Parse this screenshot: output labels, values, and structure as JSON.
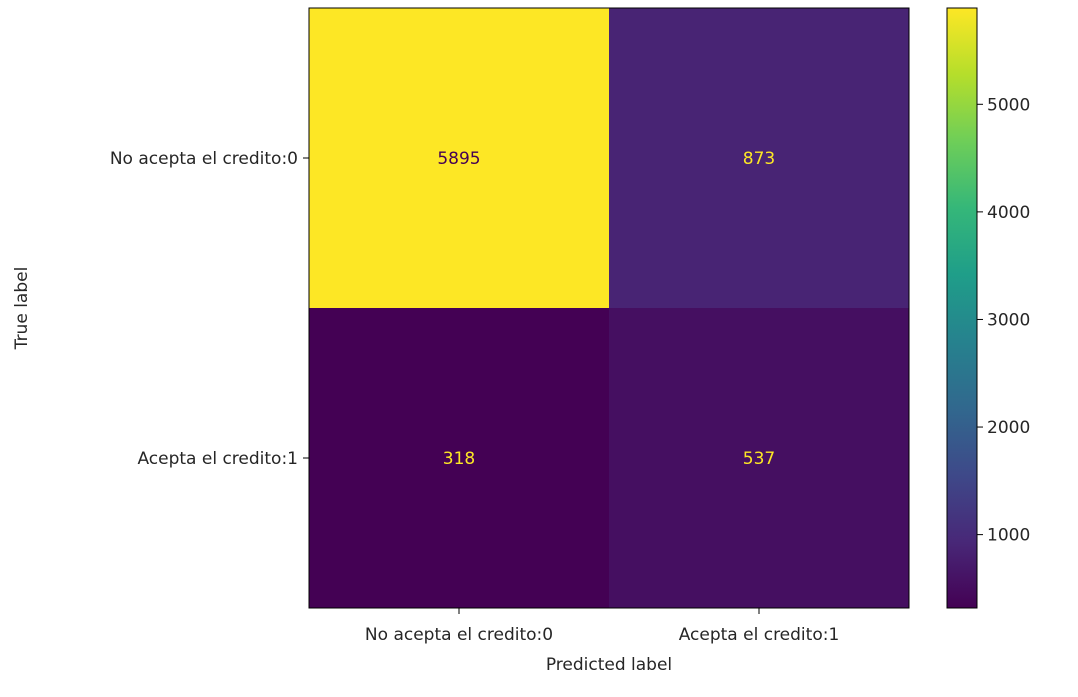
{
  "chart_data": {
    "type": "heatmap",
    "title": "",
    "xlabel": "Predicted label",
    "ylabel": "True label",
    "x_categories": [
      "No acepta el credito:0",
      "Acepta el credito:1"
    ],
    "y_categories": [
      "No acepta el credito:0",
      "Acepta el credito:1"
    ],
    "matrix": [
      [
        5895,
        873
      ],
      [
        318,
        537
      ]
    ],
    "colormap": "viridis",
    "colorbar": {
      "vmin": 318,
      "vmax": 5895,
      "ticks": [
        1000,
        2000,
        3000,
        4000,
        5000
      ]
    },
    "text_colors": {
      "on_dark": "#fde725",
      "on_light": "#440154"
    }
  }
}
